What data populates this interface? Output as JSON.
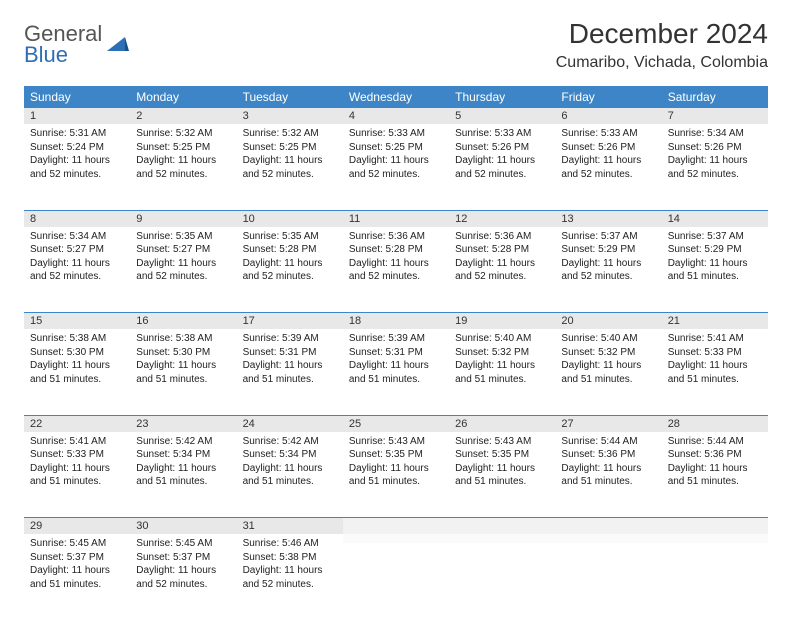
{
  "brand": {
    "line1": "General",
    "line2": "Blue"
  },
  "title": "December 2024",
  "location": "Cumaribo, Vichada, Colombia",
  "colors": {
    "header_bg": "#3d85c6",
    "header_fg": "#ffffff",
    "daynum_bg": "#e8e8e8",
    "rule": "#3d85c6",
    "brand_gray": "#555555",
    "brand_blue": "#2d6fb6"
  },
  "weekdays": [
    "Sunday",
    "Monday",
    "Tuesday",
    "Wednesday",
    "Thursday",
    "Friday",
    "Saturday"
  ],
  "weeks": [
    [
      {
        "n": "1",
        "sunrise": "5:31 AM",
        "sunset": "5:24 PM",
        "dl": "11 hours and 52 minutes."
      },
      {
        "n": "2",
        "sunrise": "5:32 AM",
        "sunset": "5:25 PM",
        "dl": "11 hours and 52 minutes."
      },
      {
        "n": "3",
        "sunrise": "5:32 AM",
        "sunset": "5:25 PM",
        "dl": "11 hours and 52 minutes."
      },
      {
        "n": "4",
        "sunrise": "5:33 AM",
        "sunset": "5:25 PM",
        "dl": "11 hours and 52 minutes."
      },
      {
        "n": "5",
        "sunrise": "5:33 AM",
        "sunset": "5:26 PM",
        "dl": "11 hours and 52 minutes."
      },
      {
        "n": "6",
        "sunrise": "5:33 AM",
        "sunset": "5:26 PM",
        "dl": "11 hours and 52 minutes."
      },
      {
        "n": "7",
        "sunrise": "5:34 AM",
        "sunset": "5:26 PM",
        "dl": "11 hours and 52 minutes."
      }
    ],
    [
      {
        "n": "8",
        "sunrise": "5:34 AM",
        "sunset": "5:27 PM",
        "dl": "11 hours and 52 minutes."
      },
      {
        "n": "9",
        "sunrise": "5:35 AM",
        "sunset": "5:27 PM",
        "dl": "11 hours and 52 minutes."
      },
      {
        "n": "10",
        "sunrise": "5:35 AM",
        "sunset": "5:28 PM",
        "dl": "11 hours and 52 minutes."
      },
      {
        "n": "11",
        "sunrise": "5:36 AM",
        "sunset": "5:28 PM",
        "dl": "11 hours and 52 minutes."
      },
      {
        "n": "12",
        "sunrise": "5:36 AM",
        "sunset": "5:28 PM",
        "dl": "11 hours and 52 minutes."
      },
      {
        "n": "13",
        "sunrise": "5:37 AM",
        "sunset": "5:29 PM",
        "dl": "11 hours and 52 minutes."
      },
      {
        "n": "14",
        "sunrise": "5:37 AM",
        "sunset": "5:29 PM",
        "dl": "11 hours and 51 minutes."
      }
    ],
    [
      {
        "n": "15",
        "sunrise": "5:38 AM",
        "sunset": "5:30 PM",
        "dl": "11 hours and 51 minutes."
      },
      {
        "n": "16",
        "sunrise": "5:38 AM",
        "sunset": "5:30 PM",
        "dl": "11 hours and 51 minutes."
      },
      {
        "n": "17",
        "sunrise": "5:39 AM",
        "sunset": "5:31 PM",
        "dl": "11 hours and 51 minutes."
      },
      {
        "n": "18",
        "sunrise": "5:39 AM",
        "sunset": "5:31 PM",
        "dl": "11 hours and 51 minutes."
      },
      {
        "n": "19",
        "sunrise": "5:40 AM",
        "sunset": "5:32 PM",
        "dl": "11 hours and 51 minutes."
      },
      {
        "n": "20",
        "sunrise": "5:40 AM",
        "sunset": "5:32 PM",
        "dl": "11 hours and 51 minutes."
      },
      {
        "n": "21",
        "sunrise": "5:41 AM",
        "sunset": "5:33 PM",
        "dl": "11 hours and 51 minutes."
      }
    ],
    [
      {
        "n": "22",
        "sunrise": "5:41 AM",
        "sunset": "5:33 PM",
        "dl": "11 hours and 51 minutes."
      },
      {
        "n": "23",
        "sunrise": "5:42 AM",
        "sunset": "5:34 PM",
        "dl": "11 hours and 51 minutes."
      },
      {
        "n": "24",
        "sunrise": "5:42 AM",
        "sunset": "5:34 PM",
        "dl": "11 hours and 51 minutes."
      },
      {
        "n": "25",
        "sunrise": "5:43 AM",
        "sunset": "5:35 PM",
        "dl": "11 hours and 51 minutes."
      },
      {
        "n": "26",
        "sunrise": "5:43 AM",
        "sunset": "5:35 PM",
        "dl": "11 hours and 51 minutes."
      },
      {
        "n": "27",
        "sunrise": "5:44 AM",
        "sunset": "5:36 PM",
        "dl": "11 hours and 51 minutes."
      },
      {
        "n": "28",
        "sunrise": "5:44 AM",
        "sunset": "5:36 PM",
        "dl": "11 hours and 51 minutes."
      }
    ],
    [
      {
        "n": "29",
        "sunrise": "5:45 AM",
        "sunset": "5:37 PM",
        "dl": "11 hours and 51 minutes."
      },
      {
        "n": "30",
        "sunrise": "5:45 AM",
        "sunset": "5:37 PM",
        "dl": "11 hours and 52 minutes."
      },
      {
        "n": "31",
        "sunrise": "5:46 AM",
        "sunset": "5:38 PM",
        "dl": "11 hours and 52 minutes."
      },
      null,
      null,
      null,
      null
    ]
  ],
  "labels": {
    "sunrise": "Sunrise:",
    "sunset": "Sunset:",
    "daylight": "Daylight:"
  }
}
